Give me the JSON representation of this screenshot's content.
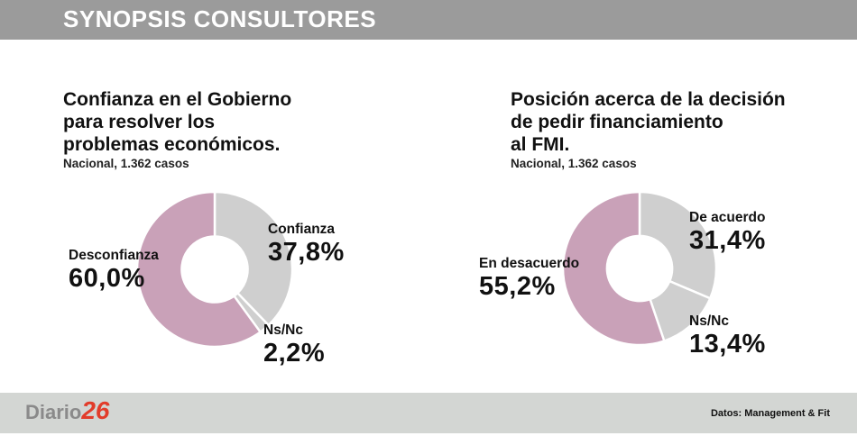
{
  "header": {
    "title": "SYNOPSIS CONSULTORES"
  },
  "footer": {
    "logo_text": "Diario",
    "logo_number": "26",
    "source": "Datos: Management & Fit"
  },
  "colors": {
    "pink": "#c9a1b8",
    "gray": "#cfcfcf",
    "header_bg": "#9b9b9b",
    "footer_bg": "#d3d6d3"
  },
  "chart_data": [
    {
      "type": "pie",
      "title": "Confianza en el Gobierno para resolver los problemas económicos.",
      "title_lines": [
        "Confianza en el Gobierno",
        "para resolver los",
        "problemas económicos."
      ],
      "subtitle": "Nacional, 1.362 casos",
      "slices": [
        {
          "name": "Confianza",
          "label": "37,8%",
          "value": 37.8,
          "color": "#cfcfcf"
        },
        {
          "name": "Ns/Nc",
          "label": "2,2%",
          "value": 2.2,
          "color": "#cfcfcf"
        },
        {
          "name": "Desconfianza",
          "label": "60,0%",
          "value": 60.0,
          "color": "#c9a1b8"
        }
      ]
    },
    {
      "type": "pie",
      "title": "Posición acerca de la decisión de pedir financiamiento al FMI.",
      "title_lines": [
        "Posición acerca de la decisión",
        "de pedir financiamiento",
        "al FMI."
      ],
      "subtitle": "Nacional, 1.362 casos",
      "slices": [
        {
          "name": "De acuerdo",
          "label": "31,4%",
          "value": 31.4,
          "color": "#cfcfcf"
        },
        {
          "name": "Ns/Nc",
          "label": "13,4%",
          "value": 13.4,
          "color": "#cfcfcf"
        },
        {
          "name": "En desacuerdo",
          "label": "55,2%",
          "value": 55.2,
          "color": "#c9a1b8"
        }
      ]
    }
  ]
}
